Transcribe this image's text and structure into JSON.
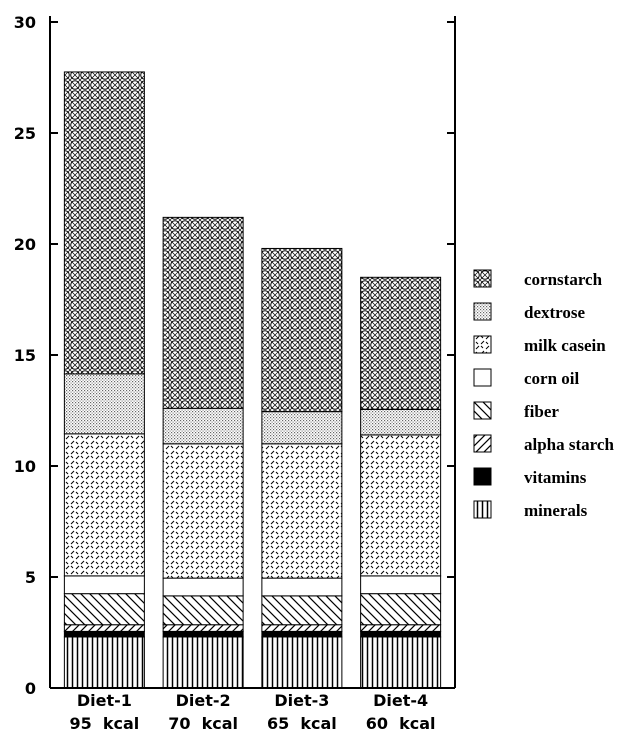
{
  "chart_data": {
    "type": "stacked_bar",
    "categories": [
      "Diet-1",
      "Diet-2",
      "Diet-3",
      "Diet-4"
    ],
    "subcategories": [
      "95  kcal",
      "70  kcal",
      "65  kcal",
      "60  kcal"
    ],
    "ylim": [
      0,
      30
    ],
    "yticks": [
      0,
      5,
      10,
      15,
      20,
      25,
      30
    ],
    "series": [
      {
        "name": "minerals",
        "pattern": "vertical",
        "values": [
          2.3,
          2.3,
          2.3,
          2.3
        ]
      },
      {
        "name": "vitamins",
        "pattern": "solid",
        "values": [
          0.25,
          0.25,
          0.25,
          0.25
        ]
      },
      {
        "name": "alpha starch",
        "pattern": "forward-diagonal",
        "values": [
          0.3,
          0.3,
          0.3,
          0.3
        ]
      },
      {
        "name": "fiber",
        "pattern": "back-diagonal",
        "values": [
          1.4,
          1.3,
          1.3,
          1.4
        ]
      },
      {
        "name": "corn oil",
        "pattern": "empty",
        "values": [
          0.8,
          0.8,
          0.8,
          0.8
        ]
      },
      {
        "name": "milk casein",
        "pattern": "dashes",
        "values": [
          6.4,
          6.05,
          6.05,
          6.35
        ]
      },
      {
        "name": "dextrose",
        "pattern": "dots",
        "values": [
          2.7,
          1.6,
          1.45,
          1.15
        ]
      },
      {
        "name": "cornstarch",
        "pattern": "circles",
        "values": [
          13.6,
          8.6,
          7.35,
          5.95
        ]
      }
    ]
  }
}
